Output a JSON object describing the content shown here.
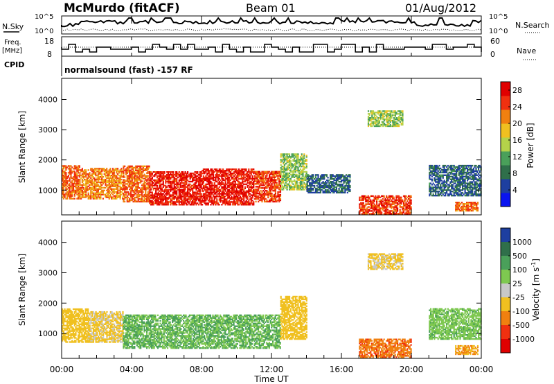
{
  "header": {
    "station": "McMurdo (fitACF)",
    "beam": "Beam 01",
    "date": "01/Aug/2012"
  },
  "noise_panel": {
    "left_label": "N.Sky",
    "right_label": "N.Search",
    "ticks_left": [
      "10^5",
      "10^0"
    ],
    "ticks_right": [
      "10^5",
      "10^0"
    ]
  },
  "freq_panel": {
    "left_label_line1": "Freq.",
    "left_label_line2": "[MHz]",
    "right_label": "Nave",
    "ticks_left": [
      "18",
      "8"
    ],
    "ticks_right": [
      "60",
      "0"
    ]
  },
  "cpid": {
    "label": "CPID",
    "text": "normalsound (fast) -157 RF"
  },
  "x_axis": {
    "label": "Time UT",
    "ticks": [
      "00:00",
      "04:00",
      "08:00",
      "12:00",
      "16:00",
      "20:00",
      "00:00"
    ]
  },
  "colors": {
    "power_scale": [
      "#0a14f0",
      "#1e3fa0",
      "#2f6f4a",
      "#4aa05a",
      "#b4d24a",
      "#f0c020",
      "#f08010",
      "#f03010",
      "#e00000"
    ],
    "velocity_scale": [
      "#1e3fa0",
      "#2f6f4a",
      "#4aa05a",
      "#7ec850",
      "#c8c8c8",
      "#f0c020",
      "#f08010",
      "#f03010",
      "#e00000"
    ]
  },
  "chart_data": [
    {
      "type": "heatmap",
      "title": "Power",
      "xlabel": "Time UT",
      "ylabel": "Slant Range [km]",
      "x_range_hours": [
        0,
        24
      ],
      "ylim": [
        180,
        4700
      ],
      "y_ticks": [
        1000,
        2000,
        3000,
        4000
      ],
      "colorbar": {
        "label": "Power [dB]",
        "ticks": [
          "4",
          "8",
          "12",
          "16",
          "20",
          "24",
          "28"
        ],
        "range": [
          0,
          30
        ]
      },
      "regions": [
        {
          "t_start": 0.0,
          "t_end": 1.0,
          "r_low": 700,
          "r_high": 1800,
          "value_db": 24
        },
        {
          "t_start": 1.0,
          "t_end": 3.5,
          "r_low": 700,
          "r_high": 1700,
          "value_db": 22
        },
        {
          "t_start": 3.5,
          "t_end": 5.0,
          "r_low": 600,
          "r_high": 1800,
          "value_db": 24
        },
        {
          "t_start": 5.0,
          "t_end": 8.0,
          "r_low": 500,
          "r_high": 1600,
          "value_db": 28
        },
        {
          "t_start": 8.0,
          "t_end": 11.0,
          "r_low": 500,
          "r_high": 1700,
          "value_db": 28
        },
        {
          "t_start": 11.0,
          "t_end": 12.5,
          "r_low": 600,
          "r_high": 1600,
          "value_db": 26
        },
        {
          "t_start": 12.5,
          "t_end": 14.0,
          "r_low": 1000,
          "r_high": 2200,
          "value_db": 14
        },
        {
          "t_start": 14.0,
          "t_end": 16.5,
          "r_low": 900,
          "r_high": 1500,
          "value_db": 6
        },
        {
          "t_start": 17.0,
          "t_end": 20.0,
          "r_low": 200,
          "r_high": 800,
          "value_db": 26
        },
        {
          "t_start": 21.0,
          "t_end": 24.0,
          "r_low": 800,
          "r_high": 1800,
          "value_db": 6
        },
        {
          "t_start": 22.5,
          "t_end": 23.8,
          "r_low": 300,
          "r_high": 600,
          "value_db": 24
        },
        {
          "t_start": 17.5,
          "t_end": 19.5,
          "r_low": 3100,
          "r_high": 3600,
          "value_db": 14
        }
      ]
    },
    {
      "type": "heatmap",
      "title": "Velocity",
      "xlabel": "Time UT",
      "ylabel": "Slant Range [km]",
      "x_range_hours": [
        0,
        24
      ],
      "ylim": [
        180,
        4700
      ],
      "y_ticks": [
        1000,
        2000,
        3000,
        4000
      ],
      "colorbar": {
        "label": "Velocity [m s^-1]",
        "ticks": [
          "1000",
          "500",
          "100",
          "25",
          "-25",
          "-100",
          "-500",
          "-1000"
        ]
      },
      "regions": [
        {
          "t_start": 0.0,
          "t_end": 1.5,
          "r_low": 700,
          "r_high": 1800,
          "velocity": -150
        },
        {
          "t_start": 1.5,
          "t_end": 3.5,
          "r_low": 700,
          "r_high": 1700,
          "velocity": -80
        },
        {
          "t_start": 3.5,
          "t_end": 12.5,
          "r_low": 500,
          "r_high": 1600,
          "velocity": 60
        },
        {
          "t_start": 12.5,
          "t_end": 14.0,
          "r_low": 800,
          "r_high": 2200,
          "velocity": -200
        },
        {
          "t_start": 17.0,
          "t_end": 20.0,
          "r_low": 200,
          "r_high": 800,
          "velocity": -600
        },
        {
          "t_start": 21.0,
          "t_end": 24.0,
          "r_low": 800,
          "r_high": 1800,
          "velocity": 40
        },
        {
          "t_start": 22.5,
          "t_end": 23.8,
          "r_low": 300,
          "r_high": 600,
          "velocity": -300
        },
        {
          "t_start": 17.5,
          "t_end": 19.5,
          "r_low": 3100,
          "r_high": 3600,
          "velocity": -80
        }
      ]
    }
  ]
}
